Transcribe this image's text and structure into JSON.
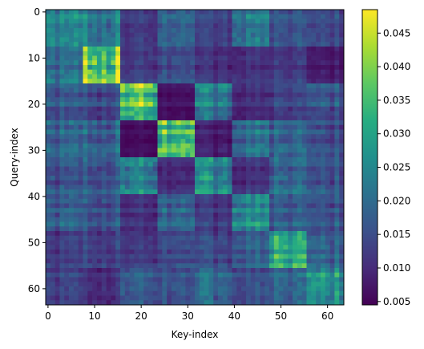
{
  "chart_data": {
    "type": "heatmap",
    "title": "",
    "xlabel": "Key-index",
    "ylabel": "Query-index",
    "n_rows": 64,
    "n_cols": 64,
    "x_ticks": [
      0,
      10,
      20,
      30,
      40,
      50,
      60
    ],
    "y_ticks": [
      0,
      10,
      20,
      30,
      40,
      50,
      60
    ],
    "colorbar": {
      "colormap": "viridis",
      "vmin": 0.0045,
      "vmax": 0.0485,
      "ticks": [
        0.005,
        0.01,
        0.015,
        0.02,
        0.025,
        0.03,
        0.035,
        0.04,
        0.045
      ],
      "tick_labels": [
        "0.005",
        "0.010",
        "0.015",
        "0.020",
        "0.025",
        "0.030",
        "0.035",
        "0.040",
        "0.045"
      ]
    },
    "block_size": 8,
    "block_means": [
      [
        0.023,
        0.022,
        0.012,
        0.019,
        0.013,
        0.021,
        0.015,
        0.014
      ],
      [
        0.02,
        0.04,
        0.013,
        0.016,
        0.011,
        0.011,
        0.012,
        0.008
      ],
      [
        0.016,
        0.015,
        0.037,
        0.007,
        0.023,
        0.01,
        0.013,
        0.016
      ],
      [
        0.018,
        0.018,
        0.006,
        0.036,
        0.008,
        0.02,
        0.018,
        0.015
      ],
      [
        0.016,
        0.017,
        0.025,
        0.011,
        0.026,
        0.011,
        0.019,
        0.016
      ],
      [
        0.017,
        0.016,
        0.011,
        0.02,
        0.012,
        0.025,
        0.017,
        0.016
      ],
      [
        0.012,
        0.013,
        0.012,
        0.015,
        0.014,
        0.017,
        0.03,
        0.018
      ],
      [
        0.013,
        0.011,
        0.018,
        0.017,
        0.02,
        0.015,
        0.019,
        0.027
      ]
    ]
  }
}
